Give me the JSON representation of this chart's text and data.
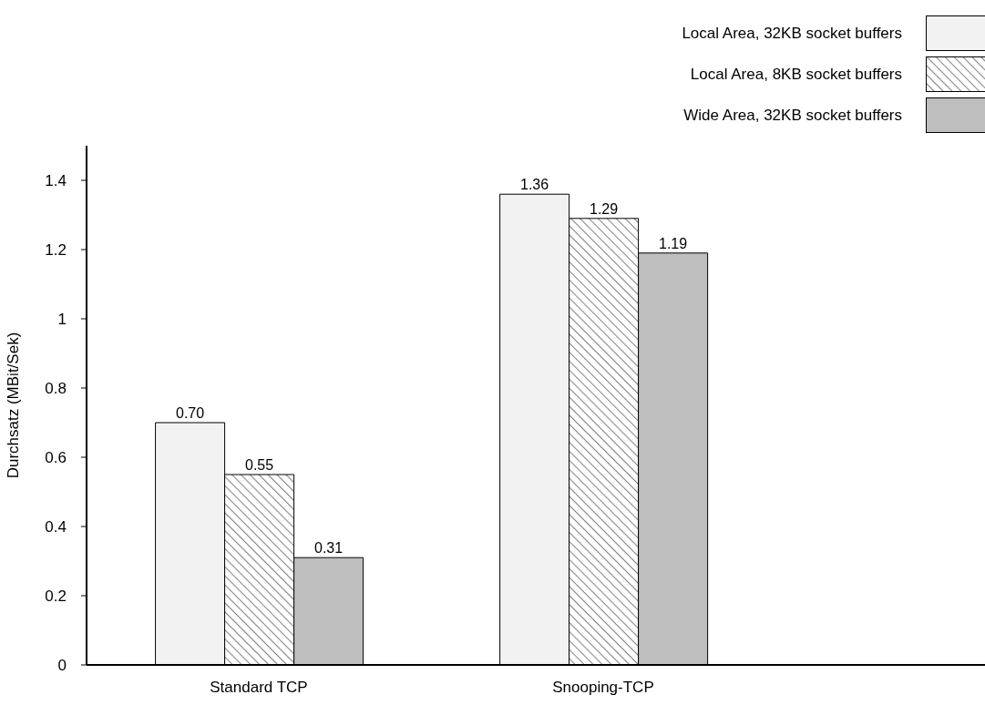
{
  "chart_data": {
    "type": "bar",
    "ylabel": "Durchsatz (MBit/Sek)",
    "categories": [
      "Standard TCP",
      "Snooping-TCP"
    ],
    "series": [
      {
        "name": "Local Area, 32KB socket buffers",
        "color": "#f2f2f2",
        "values": [
          0.7,
          1.36
        ],
        "value_labels": [
          "0.70",
          "1.36"
        ]
      },
      {
        "name": "Local Area, 8KB socket buffers",
        "color": "#000000",
        "values": [
          0.55,
          1.29
        ],
        "value_labels": [
          "0.55",
          "1.29"
        ]
      },
      {
        "name": "Wide Area, 32KB socket buffers",
        "color": "#bebebe",
        "values": [
          0.31,
          1.19
        ],
        "value_labels": [
          "0.31",
          "1.19"
        ]
      }
    ],
    "ylim": [
      0,
      1.5
    ],
    "yticks": [
      0,
      0.2,
      0.4,
      0.6,
      0.8,
      1,
      1.2,
      1.4
    ],
    "legend": "top right",
    "grid": false
  }
}
